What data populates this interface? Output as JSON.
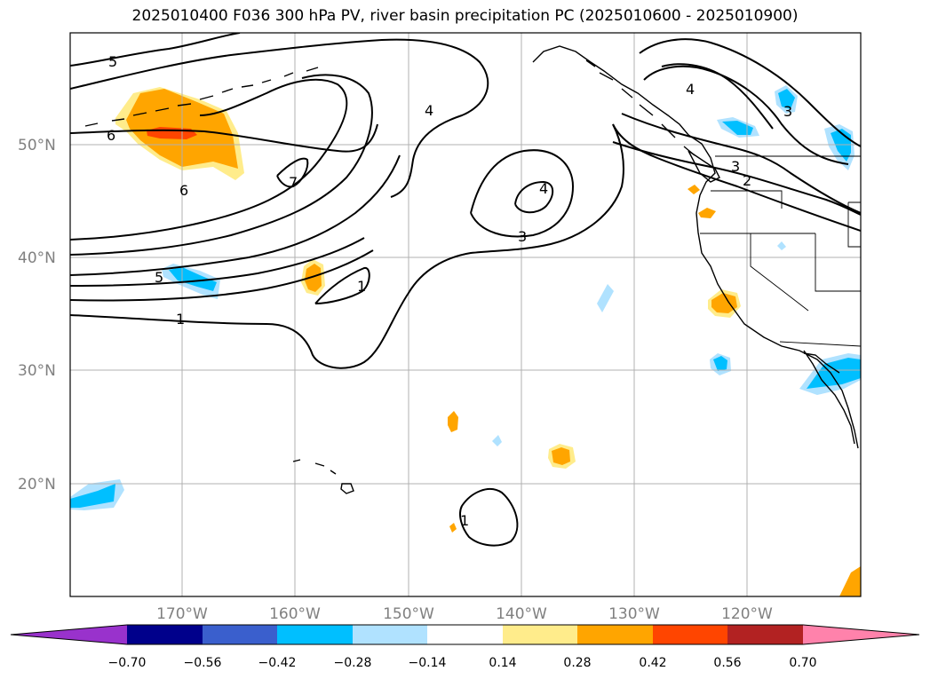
{
  "title": "2025010400 F036 300 hPa PV, river basin precipitation PC (2025010600 - 2025010900)",
  "map": {
    "lat_labels": [
      "50°N",
      "40°N",
      "30°N",
      "20°N"
    ],
    "lon_labels": [
      "170°W",
      "160°W",
      "150°W",
      "140°W",
      "130°W",
      "120°W"
    ],
    "grid": true
  },
  "contour_labels": [
    "5",
    "4",
    "6",
    "6",
    "7",
    "4",
    "3",
    "3",
    "2",
    "4",
    "5",
    "1",
    "1",
    "3",
    "1"
  ],
  "colorbar": {
    "ticks": [
      "−0.70",
      "−0.56",
      "−0.42",
      "−0.28",
      "−0.14",
      "0.14",
      "0.28",
      "0.42",
      "0.56",
      "0.70"
    ],
    "colors": [
      "#9932cc",
      "#00008b",
      "#3a5fcd",
      "#00bfff",
      "#b0e2ff",
      "#ffffff",
      "#ffec8b",
      "#ffa500",
      "#ff4500",
      "#b22222",
      "#ff82ab"
    ],
    "extend": "both"
  }
}
